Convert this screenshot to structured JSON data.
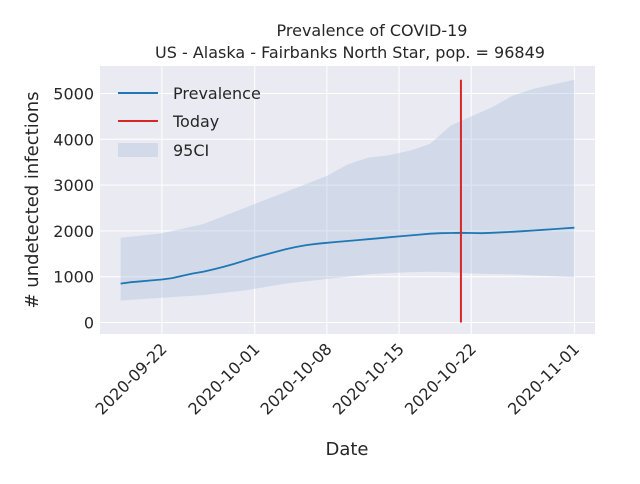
{
  "chart_data": {
    "type": "line",
    "title": "Prevalence of COVID-19",
    "subtitle": "US - Alaska - Fairbanks North Star, pop. = 96849",
    "xlabel": "Date",
    "ylabel": "# undetected infections",
    "x_ticks": [
      "2020-09-22",
      "2020-10-01",
      "2020-10-08",
      "2020-10-15",
      "2020-10-22",
      "2020-11-01"
    ],
    "y_ticks": [
      0,
      1000,
      2000,
      3000,
      4000,
      5000
    ],
    "xlim": [
      "2020-09-16",
      "2020-11-03"
    ],
    "ylim": [
      -250,
      5600
    ],
    "grid": true,
    "legend_position": "top-left",
    "series": [
      {
        "name": "Prevalence",
        "color": "#1f77b4",
        "x": [
          "2020-09-18",
          "2020-09-19",
          "2020-09-20",
          "2020-09-21",
          "2020-09-22",
          "2020-09-23",
          "2020-09-24",
          "2020-09-25",
          "2020-09-26",
          "2020-09-27",
          "2020-09-28",
          "2020-09-29",
          "2020-09-30",
          "2020-10-01",
          "2020-10-02",
          "2020-10-03",
          "2020-10-04",
          "2020-10-05",
          "2020-10-06",
          "2020-10-07",
          "2020-10-08",
          "2020-10-09",
          "2020-10-10",
          "2020-10-11",
          "2020-10-12",
          "2020-10-13",
          "2020-10-14",
          "2020-10-15",
          "2020-10-16",
          "2020-10-17",
          "2020-10-18",
          "2020-10-19",
          "2020-10-20",
          "2020-10-21",
          "2020-10-22",
          "2020-10-23",
          "2020-10-24",
          "2020-10-25",
          "2020-10-26",
          "2020-10-27",
          "2020-10-28",
          "2020-10-29",
          "2020-10-30",
          "2020-10-31",
          "2020-11-01"
        ],
        "y": [
          850,
          880,
          900,
          920,
          940,
          970,
          1020,
          1070,
          1110,
          1160,
          1220,
          1280,
          1350,
          1420,
          1480,
          1540,
          1600,
          1650,
          1690,
          1720,
          1740,
          1760,
          1780,
          1800,
          1820,
          1840,
          1860,
          1880,
          1900,
          1920,
          1940,
          1950,
          1955,
          1960,
          1955,
          1950,
          1960,
          1970,
          1980,
          1995,
          2010,
          2025,
          2040,
          2055,
          2070
        ]
      }
    ],
    "band": {
      "name": "95CI",
      "color": "#b0c4de",
      "x": [
        "2020-09-18",
        "2020-09-22",
        "2020-09-26",
        "2020-09-30",
        "2020-10-04",
        "2020-10-08",
        "2020-10-10",
        "2020-10-12",
        "2020-10-14",
        "2020-10-16",
        "2020-10-18",
        "2020-10-20",
        "2020-10-22",
        "2020-10-24",
        "2020-10-26",
        "2020-10-28",
        "2020-10-30",
        "2020-11-01"
      ],
      "upper": [
        1850,
        1950,
        2150,
        2500,
        2850,
        3200,
        3450,
        3600,
        3650,
        3750,
        3900,
        4300,
        4500,
        4700,
        4950,
        5100,
        5200,
        5300
      ],
      "lower": [
        480,
        540,
        600,
        700,
        850,
        950,
        1000,
        1050,
        1080,
        1100,
        1110,
        1100,
        1070,
        1060,
        1050,
        1030,
        1010,
        990
      ]
    },
    "today": {
      "name": "Today",
      "date": "2020-10-21",
      "color": "#d62728",
      "y_range": [
        0,
        5300
      ]
    }
  }
}
